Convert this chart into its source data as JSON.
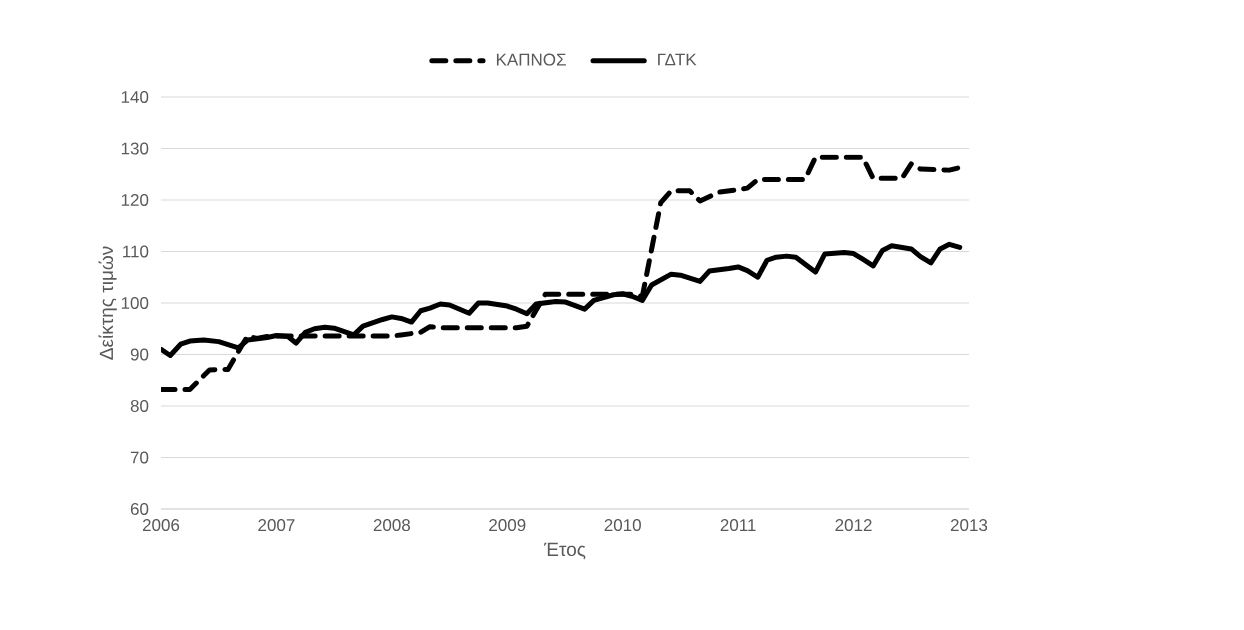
{
  "chart_data": {
    "type": "line",
    "xlabel": "Έτος",
    "ylabel": "Δείκτης τιμών",
    "xlim": [
      2006,
      2013
    ],
    "ylim": [
      60,
      140
    ],
    "xticks": [
      2006,
      2007,
      2008,
      2009,
      2010,
      2011,
      2012,
      2013
    ],
    "yticks": [
      60,
      70,
      80,
      90,
      100,
      110,
      120,
      130,
      140
    ],
    "grid": "y",
    "legend": "top",
    "marker": "none",
    "series": [
      {
        "name": "ΚΑΠΝΟΣ",
        "color": "#000000",
        "line_style": "dashed",
        "x": [
          2006.0,
          2006.25,
          2006.42,
          2006.58,
          2006.75,
          2006.83,
          2006.92,
          2007.0,
          2007.5,
          2008.0,
          2008.08,
          2008.25,
          2008.33,
          2008.42,
          2009.08,
          2009.17,
          2009.33,
          2010.08,
          2010.17,
          2010.33,
          2010.42,
          2010.58,
          2010.67,
          2010.83,
          2011.0,
          2011.08,
          2011.17,
          2011.58,
          2011.67,
          2012.08,
          2012.17,
          2012.42,
          2012.5,
          2012.58,
          2012.83,
          2012.92
        ],
        "values": [
          83.2,
          83.2,
          87,
          87.1,
          93.6,
          93.1,
          93.5,
          93.6,
          93.6,
          93.6,
          93.8,
          94.3,
          95.4,
          95.2,
          95.2,
          95.5,
          101.7,
          101.7,
          101.3,
          119.5,
          121.8,
          121.8,
          119.8,
          121.5,
          122,
          122.3,
          124,
          124,
          128.3,
          128.3,
          124.2,
          124.2,
          127,
          126,
          125.8,
          126.3
        ]
      },
      {
        "name": "ΓΔΤΚ",
        "color": "#000000",
        "line_style": "solid",
        "x": [
          2006.0,
          2006.08,
          2006.17,
          2006.25,
          2006.37,
          2006.5,
          2006.67,
          2006.75,
          2006.92,
          2007.0,
          2007.1,
          2007.17,
          2007.25,
          2007.33,
          2007.42,
          2007.5,
          2007.67,
          2007.75,
          2007.92,
          2008.0,
          2008.08,
          2008.17,
          2008.25,
          2008.33,
          2008.42,
          2008.5,
          2008.67,
          2008.75,
          2008.83,
          2009.0,
          2009.08,
          2009.17,
          2009.25,
          2009.42,
          2009.5,
          2009.67,
          2009.75,
          2009.92,
          2010.0,
          2010.08,
          2010.17,
          2010.25,
          2010.42,
          2010.5,
          2010.67,
          2010.75,
          2010.92,
          2011.0,
          2011.08,
          2011.17,
          2011.25,
          2011.33,
          2011.42,
          2011.5,
          2011.67,
          2011.75,
          2011.92,
          2012.0,
          2012.08,
          2012.17,
          2012.25,
          2012.33,
          2012.5,
          2012.58,
          2012.67,
          2012.75,
          2012.83,
          2012.92
        ],
        "values": [
          91,
          89.8,
          92,
          92.6,
          92.8,
          92.5,
          91.3,
          92.8,
          93.3,
          93.7,
          93.5,
          92.2,
          94.3,
          95,
          95.3,
          95.1,
          93.8,
          95.5,
          96.8,
          97.3,
          97,
          96.3,
          98.5,
          99,
          99.8,
          99.6,
          98,
          100,
          100,
          99.4,
          98.8,
          97.9,
          99.8,
          100.3,
          100.2,
          98.8,
          100.5,
          101.6,
          101.8,
          101.3,
          100.5,
          103.5,
          105.6,
          105.4,
          104.2,
          106.2,
          106.7,
          107,
          106.3,
          105,
          108.3,
          108.9,
          109.1,
          108.9,
          106,
          109.5,
          109.8,
          109.6,
          108.5,
          107.2,
          110.2,
          111.1,
          110.5,
          109,
          107.8,
          110.5,
          111.4,
          110.8
        ]
      }
    ]
  }
}
